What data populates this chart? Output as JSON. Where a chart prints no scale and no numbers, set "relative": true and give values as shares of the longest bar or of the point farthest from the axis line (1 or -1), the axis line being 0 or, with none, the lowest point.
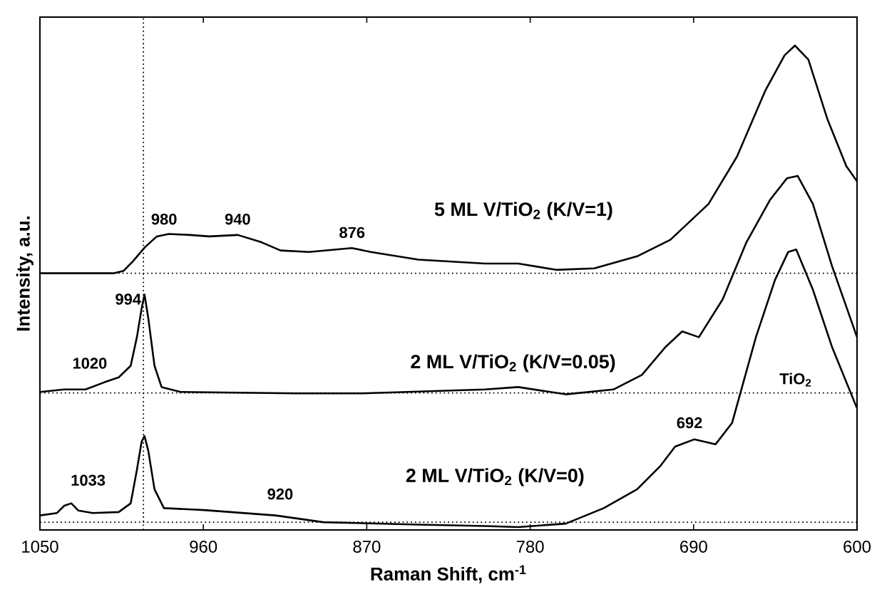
{
  "chart_data": {
    "type": "line",
    "relative": true,
    "xlabel": "Raman Shift, cm$^{-1}$",
    "ylabel": "Intensity, a.u.",
    "xlim": [
      1050,
      600
    ],
    "xticks": [
      1050,
      960,
      870,
      780,
      690,
      600
    ],
    "tick_labels": "x",
    "grid": false,
    "marker": "none",
    "line_style": "solid",
    "series": [
      {
        "name": "5 ML V/TiO$_{2}$ (K/V=1)",
        "color": "#000000",
        "x": [
          1050,
          1024.9,
          1009.2,
          1003.9,
          998.7,
          992.1,
          985.6,
          979.1,
          967.3,
          956.8,
          941.0,
          928.0,
          917.5,
          901.8,
          878.2,
          867.8,
          841.6,
          804.9,
          786.6,
          765.7,
          744.7,
          721.1,
          702.8,
          681.8,
          666.1,
          650.4,
          639.9,
          634.2,
          626.8,
          616.4,
          605.9,
          600
        ],
        "values": [
          0.53,
          0.53,
          0.53,
          0.535,
          0.555,
          0.584,
          0.606,
          0.611,
          0.609,
          0.606,
          0.609,
          0.594,
          0.577,
          0.574,
          0.582,
          0.574,
          0.558,
          0.55,
          0.55,
          0.537,
          0.54,
          0.565,
          0.599,
          0.673,
          0.771,
          0.908,
          0.98,
          1.0,
          0.971,
          0.849,
          0.751,
          0.72
        ]
      },
      {
        "name": "2 ML V/TiO$_{2}$ (K/V=0.05)",
        "color": "#000000",
        "x": [
          1050,
          1036.6,
          1024.9,
          1014.4,
          1006.6,
          1000,
          996.6,
          994,
          992.4,
          990.3,
          986.9,
          983,
          972.5,
          909.6,
          873.0,
          804.9,
          786.6,
          760.4,
          734.2,
          718.5,
          705.4,
          696.3,
          687.1,
          674.0,
          660.9,
          647.8,
          638.6,
          632.7,
          624.3,
          613.8,
          600
        ],
        "values": [
          0.285,
          0.29,
          0.29,
          0.305,
          0.315,
          0.339,
          0.398,
          0.457,
          0.486,
          0.437,
          0.339,
          0.295,
          0.285,
          0.282,
          0.282,
          0.29,
          0.295,
          0.28,
          0.29,
          0.32,
          0.378,
          0.41,
          0.398,
          0.476,
          0.594,
          0.682,
          0.726,
          0.731,
          0.673,
          0.545,
          0.398
        ]
      },
      {
        "name": "2 ML V/TiO$_{2}$ (K/V=0)",
        "color": "#000000",
        "x": [
          1050,
          1040.6,
          1036.6,
          1032.7,
          1028.8,
          1020.9,
          1006.6,
          1000,
          996.6,
          994,
          992.4,
          990.3,
          986.9,
          981.7,
          959.4,
          920.2,
          893.9,
          841.6,
          804.9,
          786.6,
          760.4,
          739.5,
          721.1,
          708.1,
          700.2,
          689.7,
          677.9,
          668.8,
          655.7,
          645.2,
          637.9,
          633.5,
          624.3,
          613.8,
          600
        ],
        "values": [
          0.03,
          0.035,
          0.05,
          0.055,
          0.04,
          0.035,
          0.037,
          0.055,
          0.124,
          0.182,
          0.194,
          0.163,
          0.084,
          0.045,
          0.041,
          0.03,
          0.016,
          0.011,
          0.008,
          0.006,
          0.013,
          0.045,
          0.084,
          0.133,
          0.172,
          0.187,
          0.177,
          0.221,
          0.398,
          0.516,
          0.574,
          0.579,
          0.496,
          0.378,
          0.251
        ]
      }
    ],
    "ref_lines": [
      {
        "axis": "x",
        "value": 993,
        "color": "#000000",
        "line_style": "dotted"
      },
      {
        "axis": "y",
        "value": 0.53,
        "color": "#000000",
        "line_style": "dotted"
      },
      {
        "axis": "y",
        "value": 0.283,
        "color": "#000000",
        "line_style": "dotted"
      },
      {
        "axis": "y",
        "value": 0.016,
        "color": "#000000",
        "line_style": "dotted"
      }
    ],
    "annotations": [
      "980",
      "940",
      "876",
      "994",
      "1020",
      "1033",
      "920",
      "692",
      "TiO$_{2}$"
    ]
  }
}
